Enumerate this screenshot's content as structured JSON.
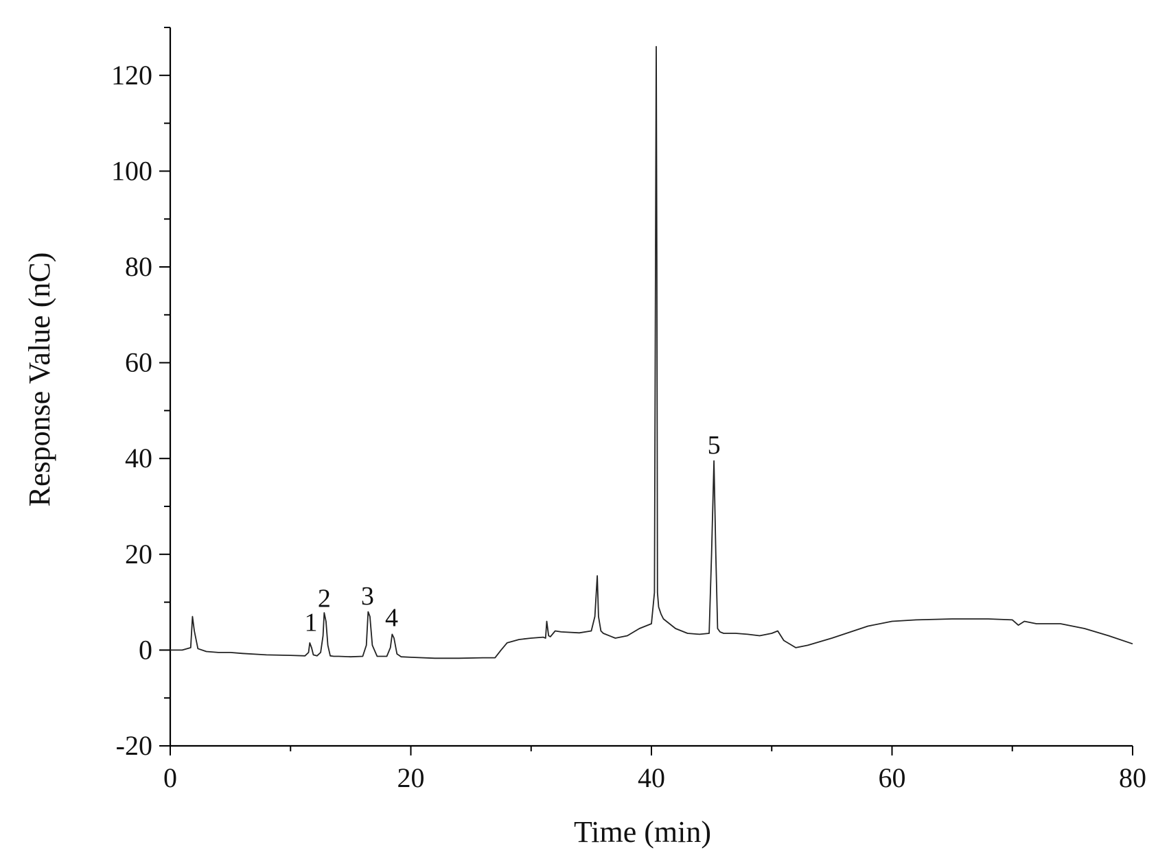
{
  "chart_data": {
    "type": "line",
    "title": "",
    "xlabel": "Time (min)",
    "ylabel": "Response Value (nC)",
    "xlim": [
      0,
      80
    ],
    "ylim": [
      -20,
      130
    ],
    "x_ticks": [
      0,
      20,
      40,
      60,
      80
    ],
    "x_minor_ticks": [
      10,
      30,
      50,
      70
    ],
    "y_ticks": [
      -20,
      0,
      20,
      40,
      60,
      80,
      100,
      120
    ],
    "y_minor_ticks": [
      -10,
      10,
      30,
      50,
      70,
      90,
      110,
      130
    ],
    "grid": false,
    "legend": "none",
    "series": [
      {
        "x": [
          0,
          1.0,
          1.7,
          1.85,
          2.0,
          2.3,
          3,
          4,
          5,
          6,
          8,
          10,
          11.2,
          11.5,
          11.6,
          11.75,
          11.9,
          12.2,
          12.5,
          12.7,
          12.8,
          12.95,
          13.1,
          13.3,
          13.6,
          14,
          15,
          16,
          16.3,
          16.45,
          16.6,
          16.8,
          17.2,
          18,
          18.3,
          18.45,
          18.6,
          18.85,
          19.2,
          20,
          22,
          24,
          26,
          27,
          27.5,
          28,
          29,
          30,
          31,
          31.2,
          31.3,
          31.45,
          31.6,
          32,
          32.5,
          34,
          35,
          35.3,
          35.5,
          35.6,
          35.8,
          36,
          37,
          38,
          39,
          40,
          40.25,
          40.4,
          40.45,
          40.5,
          40.6,
          40.8,
          41,
          41.5,
          42,
          43,
          44,
          44.8,
          45.0,
          45.2,
          45.35,
          45.5,
          45.7,
          46,
          47,
          48,
          49,
          50,
          50.5,
          51,
          52,
          53,
          55,
          58,
          60,
          62,
          65,
          68,
          70,
          70.5,
          71,
          72,
          74,
          76,
          78,
          80
        ],
        "y": [
          0,
          0,
          0.5,
          7,
          4,
          0.3,
          -0.3,
          -0.5,
          -0.5,
          -0.7,
          -1,
          -1.1,
          -1.2,
          -0.5,
          1.5,
          0.5,
          -1,
          -1.2,
          -0.5,
          3,
          7.8,
          6,
          1,
          -1.2,
          -1.3,
          -1.3,
          -1.4,
          -1.3,
          1,
          8,
          7,
          1,
          -1.3,
          -1.3,
          0.5,
          3.3,
          2.5,
          -0.8,
          -1.4,
          -1.5,
          -1.7,
          -1.7,
          -1.6,
          -1.6,
          0,
          1.5,
          2.2,
          2.5,
          2.7,
          2.5,
          6,
          3,
          2.8,
          4,
          3.8,
          3.6,
          4,
          7,
          15.5,
          7,
          4,
          3.5,
          2.5,
          3,
          4.5,
          5.5,
          12,
          126,
          82,
          12,
          9,
          7.5,
          6.5,
          5.5,
          4.5,
          3.5,
          3.3,
          3.5,
          20,
          39.5,
          20,
          4.5,
          3.8,
          3.5,
          3.5,
          3.3,
          3,
          3.5,
          4,
          2,
          0.5,
          1,
          2.5,
          5,
          6,
          6.3,
          6.5,
          6.5,
          6.3,
          5.2,
          6,
          5.5,
          5.5,
          4.5,
          3,
          1.3
        ]
      }
    ],
    "annotations": [
      {
        "text": "1",
        "x": 11.7,
        "y": 4
      },
      {
        "text": "2",
        "x": 12.8,
        "y": 9
      },
      {
        "text": "3",
        "x": 16.4,
        "y": 9.5
      },
      {
        "text": "4",
        "x": 18.4,
        "y": 5
      },
      {
        "text": "5",
        "x": 45.2,
        "y": 41
      }
    ]
  }
}
